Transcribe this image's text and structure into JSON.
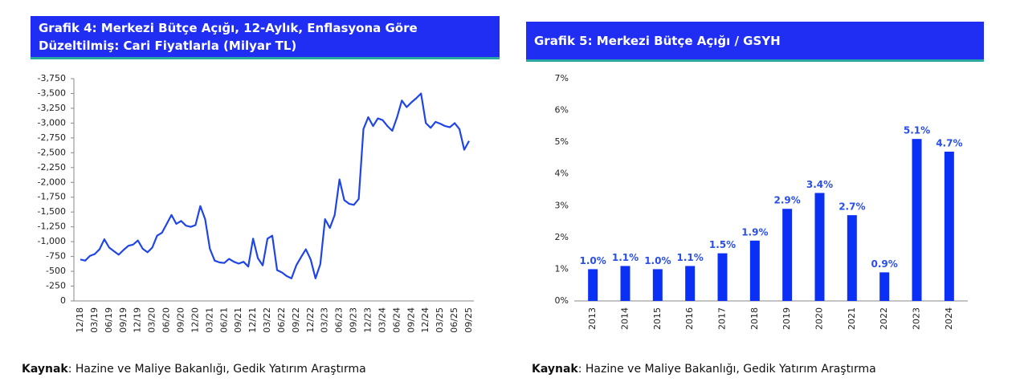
{
  "chart_data": [
    {
      "type": "line",
      "title": "Grafik 4: Merkezi Bütçe Açığı, 12-Aylık, Enflasyona Göre Düzeltilmiş: Cari Fiyatlarla (Milyar TL)",
      "source": {
        "label": "Kaynak",
        "text": ": Hazine ve Maliye Bakanlığı, Gedik Yatırım Araştırma"
      },
      "color": "#1f45e6",
      "categories": [
        "12/18",
        null,
        null,
        "03/19",
        null,
        null,
        "06/19",
        null,
        null,
        "09/19",
        null,
        null,
        "12/19",
        null,
        null,
        "03/20",
        null,
        null,
        "06/20",
        null,
        null,
        "09/20",
        null,
        null,
        "12/20",
        null,
        null,
        "03/21",
        null,
        null,
        "06/21",
        null,
        null,
        "09/21",
        null,
        null,
        "12/21",
        null,
        null,
        "03/22",
        null,
        null,
        "06/22",
        null,
        null,
        "09/22",
        null,
        null,
        "12/22",
        null,
        null,
        "03/23",
        null,
        null,
        "06/23",
        null,
        null,
        "09/23",
        null,
        null,
        "12/23",
        null,
        null,
        "03/24",
        null,
        null,
        "06/24",
        null,
        null,
        "09/24",
        null,
        null,
        "12/24",
        null,
        null,
        "03/25",
        null,
        null,
        "06/25",
        null,
        null,
        "09/25"
      ],
      "values": [
        -700,
        -680,
        -760,
        -790,
        -870,
        -1040,
        -900,
        -840,
        -780,
        -860,
        -930,
        -950,
        -1020,
        -880,
        -820,
        -900,
        -1100,
        -1150,
        -1300,
        -1450,
        -1300,
        -1350,
        -1270,
        -1250,
        -1280,
        -1600,
        -1380,
        -880,
        -680,
        -650,
        -640,
        -710,
        -660,
        -630,
        -660,
        -580,
        -1050,
        -720,
        -600,
        -1050,
        -1100,
        -520,
        -480,
        -420,
        -380,
        -600,
        -740,
        -870,
        -700,
        -380,
        -620,
        -1380,
        -1230,
        -1450,
        -2050,
        -1700,
        -1640,
        -1620,
        -1720,
        -2900,
        -3100,
        -2950,
        -3080,
        -3050,
        -2950,
        -2870,
        -3100,
        -3380,
        -3270,
        -3350,
        -3420,
        -3500,
        -3000,
        -2920,
        -3020,
        -2990,
        -2950,
        -2930,
        -3000,
        -2900,
        -2550,
        -2700
      ],
      "ylim": [
        0,
        -3750
      ],
      "yticks": [
        0,
        -250,
        -500,
        -750,
        {
          "value": -1000,
          "label": "-1,000"
        },
        {
          "value": -1250,
          "label": "-1,250"
        },
        {
          "value": -1500,
          "label": "-1,500"
        },
        {
          "value": -1750,
          "label": "-1,750"
        },
        {
          "value": -2000,
          "label": "-2,000"
        },
        {
          "value": -2250,
          "label": "-2,250"
        },
        {
          "value": -2500,
          "label": "-2,500"
        },
        {
          "value": -2750,
          "label": "-2,750"
        },
        {
          "value": -3000,
          "label": "-3,000"
        },
        {
          "value": -3250,
          "label": "-3,250"
        },
        {
          "value": -3500,
          "label": "-3,500"
        },
        {
          "value": -3750,
          "label": "-3,750"
        }
      ]
    },
    {
      "type": "bar",
      "title": "Grafik 5: Merkezi Bütçe Açığı / GSYH",
      "source": {
        "label": "Kaynak",
        "text": ": Hazine ve Maliye Bakanlığı, Gedik Yatırım Araştırma"
      },
      "color": "#0a2ff5",
      "categories": [
        "2013",
        "2014",
        "2015",
        "2016",
        "2017",
        "2018",
        "2019",
        "2020",
        "2021",
        "2022",
        "2023",
        "2024"
      ],
      "values": [
        1.0,
        1.1,
        1.0,
        1.1,
        1.5,
        1.9,
        2.9,
        3.4,
        2.7,
        0.9,
        5.1,
        4.7
      ],
      "value_labels": [
        "1.0%",
        "1.1%",
        "1.0%",
        "1.1%",
        "1.5%",
        "1.9%",
        "2.9%",
        "3.4%",
        "2.7%",
        "0.9%",
        "5.1%",
        "4.7%"
      ],
      "ylim": [
        0,
        7
      ],
      "yticks": [
        {
          "value": 0,
          "label": "0%"
        },
        {
          "value": 1,
          "label": "1%"
        },
        {
          "value": 2,
          "label": "2%"
        },
        {
          "value": 3,
          "label": "3%"
        },
        {
          "value": 4,
          "label": "4%"
        },
        {
          "value": 5,
          "label": "5%"
        },
        {
          "value": 6,
          "label": "6%"
        },
        {
          "value": 7,
          "label": "7%"
        }
      ]
    }
  ]
}
